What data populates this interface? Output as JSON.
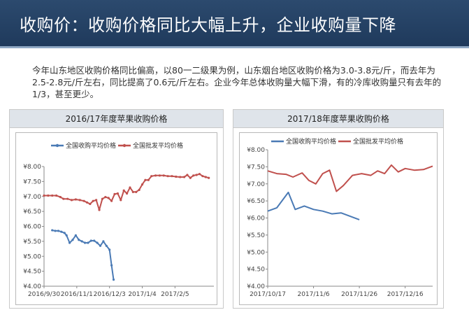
{
  "header": {
    "title": "收购价：收购价格同比大幅上升，企业收购量下降"
  },
  "intro": {
    "text": "今年山东地区收购价格同比偏高，以80一二级果为例，山东烟台地区收购价格为3.0-3.8元/斤，而去年为2.5-2.8元/斤左右，同比提高了0.6元/斤左右。企业今年总体收购量大幅下滑，有的冷库收购量只有去年的1/3，甚至更少。"
  },
  "colors": {
    "blue_series": "#4a7ab5",
    "red_series": "#c0504d",
    "header_bg": "#1f3a5c"
  },
  "chart_data": [
    {
      "type": "line",
      "title": "2016/17年度苹果收购价格",
      "ylim": [
        4.0,
        8.0
      ],
      "yticks": [
        "¥8.00",
        "¥7.50",
        "¥7.00",
        "¥6.50",
        "¥6.00",
        "¥5.50",
        "¥5.00",
        "¥4.50",
        "¥4.00"
      ],
      "xtick_labels": [
        "2016/9/30",
        "2016/11/1",
        "2016/12/3",
        "2017/1/4",
        "2017/2/5"
      ],
      "xlim": [
        "2016-09-30",
        "2017-03-15"
      ],
      "legend_position": "top-left",
      "series": [
        {
          "name": "全国收购平均价格",
          "color": "#4a7ab5",
          "points": [
            [
              "2016-10-08",
              5.87
            ],
            [
              "2016-10-11",
              5.85
            ],
            [
              "2016-10-14",
              5.85
            ],
            [
              "2016-10-17",
              5.82
            ],
            [
              "2016-10-20",
              5.78
            ],
            [
              "2016-10-22",
              5.7
            ],
            [
              "2016-10-25",
              5.45
            ],
            [
              "2016-10-28",
              5.55
            ],
            [
              "2016-10-31",
              5.7
            ],
            [
              "2016-11-03",
              5.55
            ],
            [
              "2016-11-06",
              5.5
            ],
            [
              "2016-11-09",
              5.45
            ],
            [
              "2016-11-12",
              5.45
            ],
            [
              "2016-11-15",
              5.52
            ],
            [
              "2016-11-18",
              5.52
            ],
            [
              "2016-11-21",
              5.45
            ],
            [
              "2016-11-24",
              5.35
            ],
            [
              "2016-11-27",
              5.5
            ],
            [
              "2016-11-30",
              5.35
            ],
            [
              "2016-12-03",
              5.22
            ],
            [
              "2016-12-05",
              4.7
            ],
            [
              "2016-12-07",
              4.22
            ]
          ]
        },
        {
          "name": "全国批发平均价格",
          "color": "#c0504d",
          "points": [
            [
              "2016-09-30",
              7.03
            ],
            [
              "2016-10-04",
              7.03
            ],
            [
              "2016-10-08",
              7.03
            ],
            [
              "2016-10-12",
              7.03
            ],
            [
              "2016-10-16",
              6.98
            ],
            [
              "2016-10-19",
              6.92
            ],
            [
              "2016-10-23",
              6.92
            ],
            [
              "2016-10-27",
              6.88
            ],
            [
              "2016-10-31",
              6.9
            ],
            [
              "2016-11-04",
              6.88
            ],
            [
              "2016-11-08",
              6.85
            ],
            [
              "2016-11-11",
              6.8
            ],
            [
              "2016-11-14",
              6.75
            ],
            [
              "2016-11-17",
              6.85
            ],
            [
              "2016-11-20",
              6.88
            ],
            [
              "2016-11-23",
              6.55
            ],
            [
              "2016-11-26",
              6.92
            ],
            [
              "2016-11-29",
              6.98
            ],
            [
              "2016-12-02",
              6.95
            ],
            [
              "2016-12-05",
              6.85
            ],
            [
              "2016-12-08",
              7.08
            ],
            [
              "2016-12-11",
              7.1
            ],
            [
              "2016-12-14",
              6.88
            ],
            [
              "2016-12-17",
              7.2
            ],
            [
              "2016-12-20",
              7.1
            ],
            [
              "2016-12-23",
              7.3
            ],
            [
              "2016-12-26",
              7.15
            ],
            [
              "2016-12-29",
              7.15
            ],
            [
              "2017-01-01",
              7.22
            ],
            [
              "2017-01-04",
              7.4
            ],
            [
              "2017-01-07",
              7.55
            ],
            [
              "2017-01-10",
              7.55
            ],
            [
              "2017-01-13",
              7.68
            ],
            [
              "2017-01-17",
              7.7
            ],
            [
              "2017-01-21",
              7.7
            ],
            [
              "2017-01-25",
              7.7
            ],
            [
              "2017-01-29",
              7.68
            ],
            [
              "2017-02-02",
              7.68
            ],
            [
              "2017-02-06",
              7.66
            ],
            [
              "2017-02-10",
              7.65
            ],
            [
              "2017-02-14",
              7.65
            ],
            [
              "2017-02-17",
              7.72
            ],
            [
              "2017-02-20",
              7.62
            ],
            [
              "2017-02-23",
              7.7
            ],
            [
              "2017-02-26",
              7.72
            ],
            [
              "2017-03-01",
              7.75
            ],
            [
              "2017-03-04",
              7.68
            ],
            [
              "2017-03-07",
              7.65
            ],
            [
              "2017-03-10",
              7.62
            ]
          ]
        }
      ]
    },
    {
      "type": "line",
      "title": "2017/18年度苹果收购价格",
      "ylim": [
        4.0,
        8.0
      ],
      "yticks": [
        "¥8.00",
        "¥7.50",
        "¥7.00",
        "¥6.50",
        "¥6.00",
        "¥5.50",
        "¥5.00",
        "¥4.50",
        "¥4.00"
      ],
      "xtick_labels": [
        "2017/10/17",
        "2017/11/6",
        "2017/11/26",
        "2017/12/16"
      ],
      "xlim": [
        "2017-10-17",
        "2017-12-28"
      ],
      "legend_position": "top-left",
      "series": [
        {
          "name": "全国收购平均价格",
          "color": "#4a7ab5",
          "points": [
            [
              "2017-10-17",
              6.2
            ],
            [
              "2017-10-21",
              6.3
            ],
            [
              "2017-10-26",
              6.75
            ],
            [
              "2017-10-29",
              6.25
            ],
            [
              "2017-11-02",
              6.35
            ],
            [
              "2017-11-06",
              6.25
            ],
            [
              "2017-11-10",
              6.2
            ],
            [
              "2017-11-14",
              6.12
            ],
            [
              "2017-11-18",
              6.15
            ],
            [
              "2017-11-22",
              6.05
            ],
            [
              "2017-11-26",
              5.95
            ]
          ]
        },
        {
          "name": "全国批发平均价格",
          "color": "#c0504d",
          "points": [
            [
              "2017-10-17",
              7.38
            ],
            [
              "2017-10-21",
              7.3
            ],
            [
              "2017-10-25",
              7.28
            ],
            [
              "2017-10-28",
              7.2
            ],
            [
              "2017-11-01",
              7.32
            ],
            [
              "2017-11-04",
              7.1
            ],
            [
              "2017-11-07",
              7.0
            ],
            [
              "2017-11-10",
              7.3
            ],
            [
              "2017-11-13",
              7.4
            ],
            [
              "2017-11-16",
              6.78
            ],
            [
              "2017-11-19",
              6.95
            ],
            [
              "2017-11-23",
              7.25
            ],
            [
              "2017-11-27",
              7.3
            ],
            [
              "2017-12-01",
              7.25
            ],
            [
              "2017-12-04",
              7.38
            ],
            [
              "2017-12-07",
              7.3
            ],
            [
              "2017-12-10",
              7.55
            ],
            [
              "2017-12-13",
              7.35
            ],
            [
              "2017-12-16",
              7.45
            ],
            [
              "2017-12-20",
              7.4
            ],
            [
              "2017-12-24",
              7.42
            ],
            [
              "2017-12-28",
              7.52
            ]
          ]
        }
      ]
    }
  ]
}
